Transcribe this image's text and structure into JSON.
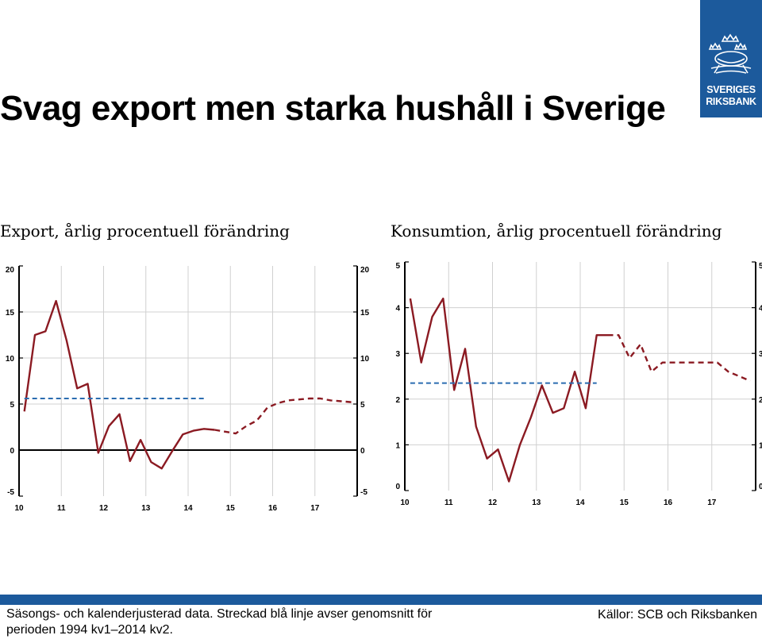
{
  "slide": {
    "title": "Svag export men starka hushåll i Sverige",
    "footnote": "Säsongs- och kalenderjusterad data. Streckad blå linje avser genomsnitt för perioden 1994 kv1–2014 kv2.",
    "source": "Källor: SCB och Riksbanken"
  },
  "logo": {
    "line1": "SVERIGES",
    "line2": "RIKSBANK"
  },
  "colors": {
    "brand": "#1c5a9c",
    "series": "#8b1a22",
    "average": "#2b6cb0",
    "grid": "#d0d0d0"
  },
  "chart_data": [
    {
      "type": "line",
      "title": "Export, årlig procentuell förändring",
      "x_tick_labels": [
        "10",
        "11",
        "12",
        "13",
        "14",
        "15",
        "16",
        "17"
      ],
      "y_ticks": [
        -5,
        0,
        5,
        10,
        15,
        20
      ],
      "xlim": [
        2010.0,
        2018.0
      ],
      "ylim": [
        -5,
        20
      ],
      "grid": true,
      "zero_line": true,
      "series": [
        {
          "style": "solid",
          "x": [
            2010.125,
            2010.375,
            2010.625,
            2010.875,
            2011.125,
            2011.375,
            2011.625,
            2011.875,
            2012.125,
            2012.375,
            2012.625,
            2012.875,
            2013.125,
            2013.375,
            2013.625,
            2013.875,
            2014.125,
            2014.375,
            2014.625
          ],
          "y": [
            4.2,
            12.5,
            12.9,
            16.2,
            11.9,
            6.7,
            7.2,
            -0.3,
            2.6,
            3.9,
            -1.2,
            1.1,
            -1.3,
            -2.0,
            -0.1,
            1.7,
            2.1,
            2.3,
            2.2
          ]
        },
        {
          "style": "dashed",
          "x": [
            2014.625,
            2014.875,
            2015.125,
            2015.375,
            2015.625,
            2015.875,
            2016.125,
            2016.375,
            2016.625,
            2016.875,
            2017.125,
            2017.375,
            2017.625,
            2017.875
          ],
          "y": [
            2.2,
            2.0,
            1.8,
            2.6,
            3.2,
            4.6,
            5.1,
            5.4,
            5.5,
            5.6,
            5.6,
            5.4,
            5.3,
            5.2
          ]
        },
        {
          "style": "average",
          "x": [
            2010.125,
            2014.375
          ],
          "y": [
            5.6,
            5.6
          ]
        }
      ]
    },
    {
      "type": "line",
      "title": "Konsumtion, årlig procentuell förändring",
      "x_tick_labels": [
        "10",
        "11",
        "12",
        "13",
        "14",
        "15",
        "16",
        "17"
      ],
      "y_ticks": [
        0,
        1,
        2,
        3,
        4,
        5
      ],
      "xlim": [
        2010.0,
        2018.0
      ],
      "ylim": [
        0,
        5
      ],
      "grid": true,
      "zero_line": false,
      "series": [
        {
          "style": "solid",
          "x": [
            2010.125,
            2010.375,
            2010.625,
            2010.875,
            2011.125,
            2011.375,
            2011.625,
            2011.875,
            2012.125,
            2012.375,
            2012.625,
            2012.875,
            2013.125,
            2013.375,
            2013.625,
            2013.875,
            2014.125,
            2014.375,
            2014.625
          ],
          "y": [
            4.2,
            2.8,
            3.8,
            4.2,
            2.2,
            3.1,
            1.4,
            0.7,
            0.9,
            0.2,
            1.0,
            1.6,
            2.3,
            1.7,
            1.8,
            2.6,
            1.8,
            3.4,
            3.4
          ]
        },
        {
          "style": "dashed",
          "x": [
            2014.625,
            2014.875,
            2015.125,
            2015.375,
            2015.625,
            2015.875,
            2016.125,
            2016.375,
            2016.625,
            2016.875,
            2017.125,
            2017.375,
            2017.625,
            2017.875
          ],
          "y": [
            3.4,
            3.4,
            2.9,
            3.2,
            2.6,
            2.8,
            2.8,
            2.8,
            2.8,
            2.8,
            2.8,
            2.6,
            2.5,
            2.4
          ]
        },
        {
          "style": "average",
          "x": [
            2010.125,
            2014.375
          ],
          "y": [
            2.35,
            2.35
          ]
        }
      ]
    }
  ]
}
